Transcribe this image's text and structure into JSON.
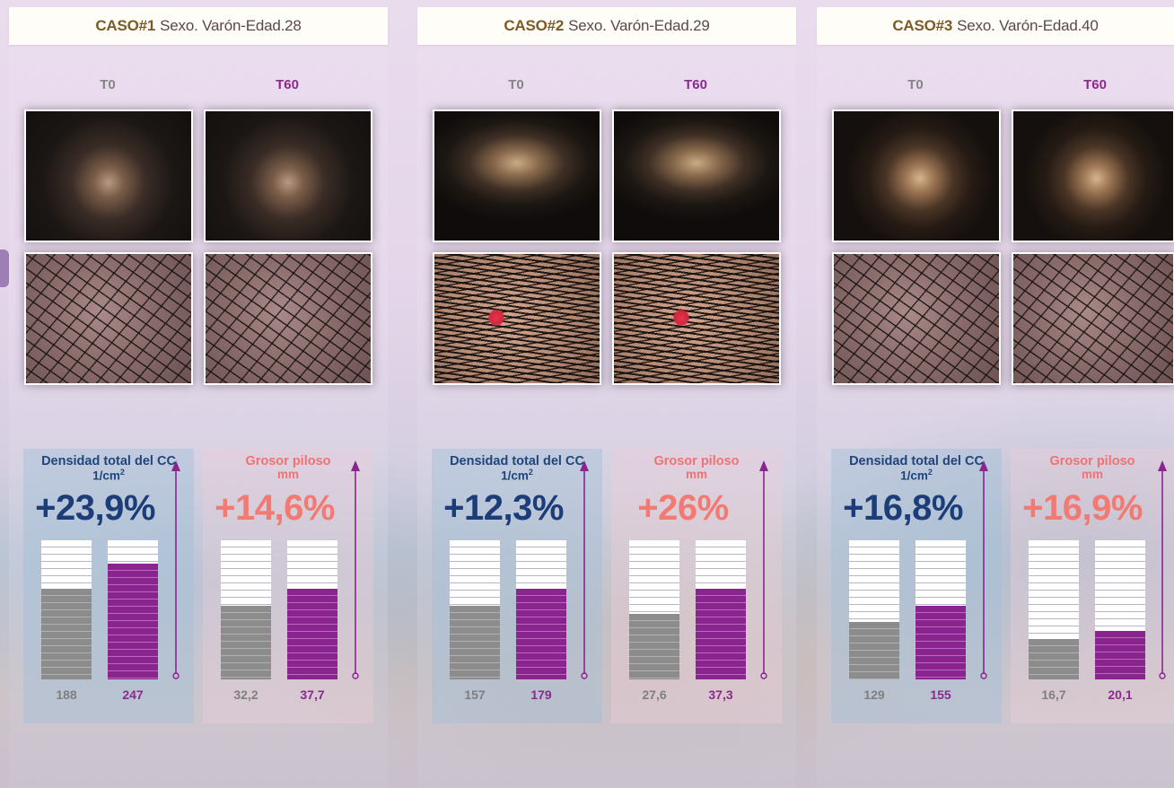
{
  "labels": {
    "t0": "T0",
    "t60": "T60"
  },
  "colors": {
    "density_title": "#21457a",
    "thickness_title": "#f07272",
    "bar_t0": "#8c8c8c",
    "bar_t60": "#8a258f",
    "case_id": "#7a5a26",
    "arrow": "#8a258f"
  },
  "cases": [
    {
      "id": "CASO#1",
      "desc": "Sexo. Varón-Edad.28",
      "density": {
        "title": "Densidad total del CC",
        "unit": "1/cm",
        "unit_sup": "2",
        "change": "+23,9%",
        "t0": "188",
        "t60": "247",
        "fill_t0": 0.65,
        "fill_t60": 0.83
      },
      "thickness": {
        "title": "Grosor piloso",
        "unit": "mm",
        "change": "+14,6%",
        "t0": "32,2",
        "t60": "37,7",
        "fill_t0": 0.53,
        "fill_t60": 0.65
      }
    },
    {
      "id": "CASO#2",
      "desc": "Sexo. Varón-Edad.29",
      "density": {
        "title": "Densidad total del CC",
        "unit": "1/cm",
        "unit_sup": "2",
        "change": "+12,3%",
        "t0": "157",
        "t60": "179",
        "fill_t0": 0.53,
        "fill_t60": 0.65
      },
      "thickness": {
        "title": "Grosor piloso",
        "unit": "mm",
        "change": "+26%",
        "t0": "27,6",
        "t60": "37,3",
        "fill_t0": 0.47,
        "fill_t60": 0.65
      }
    },
    {
      "id": "CASO#3",
      "desc": "Sexo. Varón-Edad.40",
      "density": {
        "title": "Densidad total del CC",
        "unit": "1/cm",
        "unit_sup": "2",
        "change": "+16,8%",
        "t0": "129",
        "t60": "155",
        "fill_t0": 0.41,
        "fill_t60": 0.53
      },
      "thickness": {
        "title": "Grosor piloso",
        "unit": "mm",
        "change": "+16,9%",
        "t0": "16,7",
        "t60": "20,1",
        "fill_t0": 0.29,
        "fill_t60": 0.35
      }
    }
  ]
}
